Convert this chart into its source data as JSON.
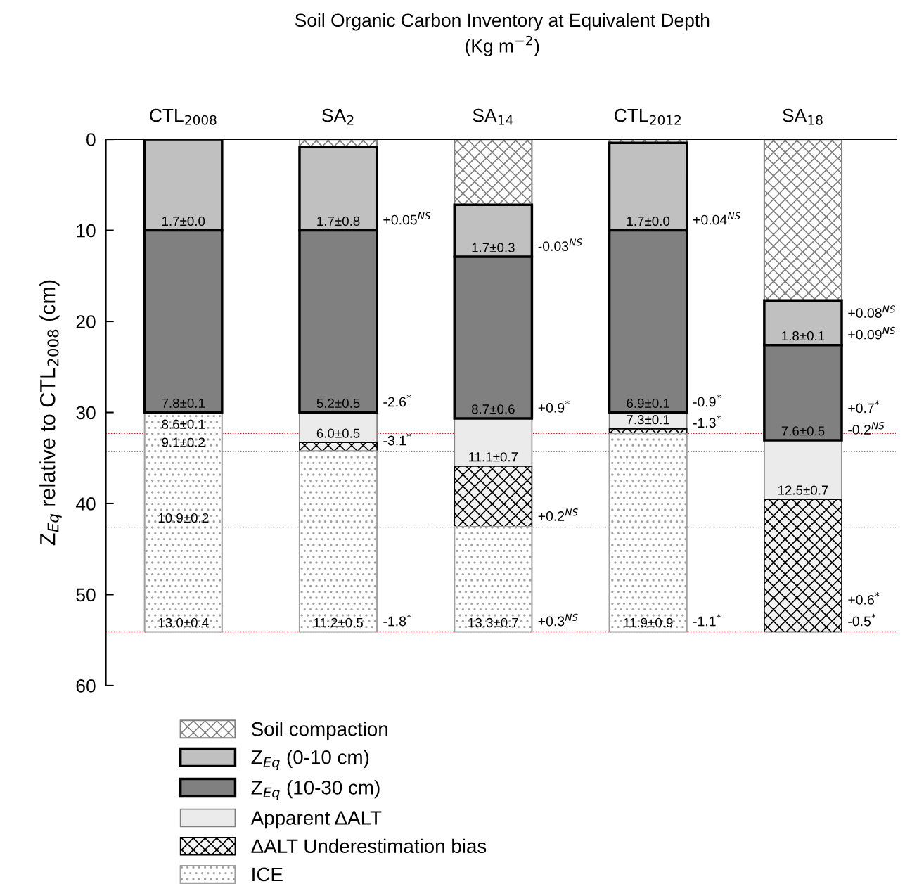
{
  "chart_data": {
    "type": "bar",
    "stacked": true,
    "title": "Soil Organic Carbon Inventory at Equivalent Depth\n(Kg m$^{−2}$)",
    "ylabel": "Z$_{Eq}$ relative to CTL$_{2008}$ (cm)",
    "categories": [
      "CTL$_{2008}$",
      "SA$_{2}$",
      "SA$_{14}$",
      "CTL$_{2012}$",
      "SA$_{18}$"
    ],
    "series": [
      {
        "name": "Soil compaction",
        "color": "#808080",
        "values": [
          null,
          0.85,
          7.2,
          0.4,
          17.7
        ]
      },
      {
        "name": "Z$_{Eq}$ (0-10 cm)",
        "color": "#c0c0c0",
        "values": [
          10,
          9.15,
          5.7,
          9.6,
          4.9
        ]
      },
      {
        "name": "Z$_{Eq}$ (10-30 cm)",
        "color": "#808080",
        "values": [
          20,
          20,
          17.75,
          20,
          10.45
        ]
      },
      {
        "name": "Apparent ΔALT",
        "color": "#ebebeb",
        "values": [
          null,
          3.3,
          5.25,
          1.8,
          6.5
        ]
      },
      {
        "name": "ΔALT Underestimation bias",
        "color": "#000000",
        "values": [
          null,
          0.95,
          6.65,
          0.5,
          14.55
        ]
      },
      {
        "name": "ICE",
        "color": "#a0a0a0",
        "values": [
          24.1,
          19.85,
          11.55,
          21.8,
          null
        ]
      }
    ],
    "ylim": [
      60,
      0
    ],
    "yticks": [
      0,
      10,
      20,
      30,
      40,
      50,
      60
    ],
    "legend": "bottom",
    "ref_lines": [
      {
        "axis": "y",
        "value": 32.3,
        "color": "#ff0000",
        "line_style": "dotted"
      },
      {
        "axis": "y",
        "value": 54.1,
        "color": "#ff0000",
        "line_style": "dotted"
      },
      {
        "axis": "y",
        "value": 34.3,
        "color": "#808080",
        "line_style": "dotted"
      },
      {
        "axis": "y",
        "value": 42.6,
        "color": "#808080",
        "line_style": "dotted"
      }
    ],
    "annotations": [
      {
        "text": "1.7±0.0",
        "x": "CTL$_{2008}$",
        "y": 10
      },
      {
        "text": "7.8±0.1",
        "x": "CTL$_{2008}$",
        "y": 30
      },
      {
        "text": "8.6±0.1",
        "x": "CTL$_{2008}$",
        "y": 32.3
      },
      {
        "text": "9.1±0.2",
        "x": "CTL$_{2008}$",
        "y": 34.3
      },
      {
        "text": "10.9±0.2",
        "x": "CTL$_{2008}$",
        "y": 42.6
      },
      {
        "text": "13.0±0.4",
        "x": "CTL$_{2008}$",
        "y": 54.1
      },
      {
        "text": "1.7±0.8",
        "x": "SA$_{2}$",
        "y": 10
      },
      "+0.05$^{NS}$",
      {
        "text": "5.2±0.5",
        "x": "SA$_{2}$",
        "y": 30
      },
      "-2.6$^{*}$",
      {
        "text": "6.0±0.5",
        "x": "SA$_{2}$",
        "y": 33.3
      },
      "-3.1$^{*}$",
      {
        "text": "11.2±0.5",
        "x": "SA$_{2}$",
        "y": 54.1
      },
      "-1.8$^{*}$",
      {
        "text": "1.7±0.3",
        "x": "SA$_{14}$",
        "y": 12.9
      },
      "-0.03$^{NS}$",
      {
        "text": "8.7±0.6",
        "x": "SA$_{14}$",
        "y": 30.65
      },
      "+0.9$^{*}$",
      {
        "text": "11.1±0.7",
        "x": "SA$_{14}$",
        "y": 35.9
      },
      "+0.2$^{NS}$",
      {
        "text": "13.3±0.7",
        "x": "SA$_{14}$",
        "y": 54.1
      },
      "+0.3$^{NS}$",
      {
        "text": "1.7±0.0",
        "x": "CTL$_{2012}$",
        "y": 10
      },
      "+0.04$^{NS}$",
      {
        "text": "6.9±0.1",
        "x": "CTL$_{2012}$",
        "y": 30
      },
      "-0.9$^{*}$",
      {
        "text": "7.3±0.1",
        "x": "CTL$_{2012}$",
        "y": 31.8
      },
      "-1.3$^{*}$",
      {
        "text": "11.9±0.9",
        "x": "CTL$_{2012}$",
        "y": 54.1
      },
      "-1.1$^{*}$",
      {
        "text": "1.8±0.1",
        "x": "SA$_{18}$",
        "y": 22.6
      },
      "+0.08$^{NS}$",
      "+0.09$^{NS}$",
      {
        "text": "7.6±0.5",
        "x": "SA$_{18}$",
        "y": 33.05
      },
      "+0.7$^{*}$",
      "-0.2$^{NS}$",
      {
        "text": "12.5±0.7",
        "x": "SA$_{18}$",
        "y": 39.55
      },
      "+0.6$^{*}$",
      "-0.5$^{*}$"
    ]
  }
}
